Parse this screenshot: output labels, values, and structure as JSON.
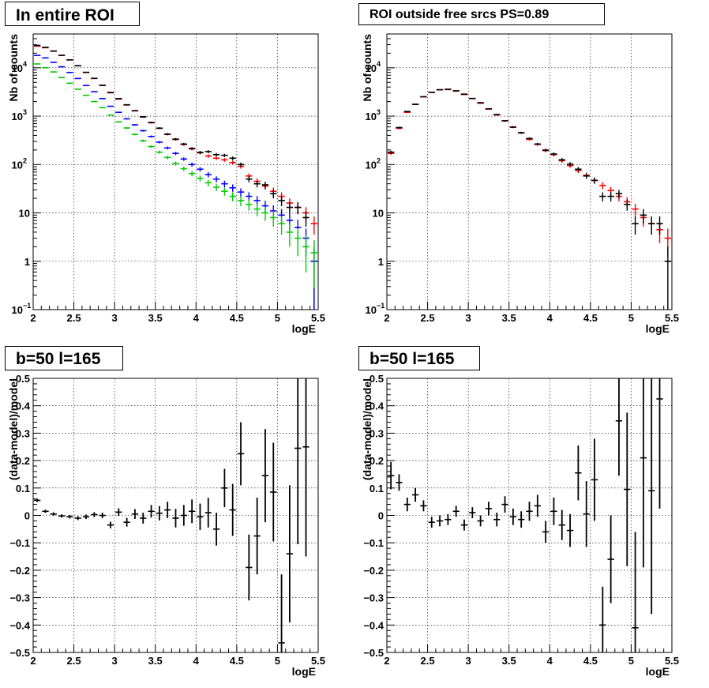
{
  "chart_data": [
    {
      "type": "scatter",
      "title": "In entire ROI",
      "xlabel": "logE",
      "ylabel": "Nb of counts",
      "xlim": [
        2,
        5.5
      ],
      "ylim": [
        0.1,
        50000
      ],
      "yscale": "log",
      "grid": true,
      "x_tick_labels": [
        "2",
        "2.5",
        "3",
        "3.5",
        "4",
        "4.5",
        "5",
        "5.5"
      ],
      "y_tick_labels": [
        {
          "mant": "10",
          "exp": "−1"
        },
        {
          "mant": "1",
          "exp": ""
        },
        {
          "mant": "10",
          "exp": ""
        },
        {
          "mant": "10",
          "exp": "2"
        },
        {
          "mant": "10",
          "exp": "3"
        },
        {
          "mant": "10",
          "exp": "4"
        }
      ],
      "x": [
        2.05,
        2.15,
        2.25,
        2.35,
        2.45,
        2.55,
        2.65,
        2.75,
        2.85,
        2.95,
        3.05,
        3.15,
        3.25,
        3.35,
        3.45,
        3.55,
        3.65,
        3.75,
        3.85,
        3.95,
        4.05,
        4.15,
        4.25,
        4.35,
        4.45,
        4.55,
        4.65,
        4.75,
        4.85,
        4.95,
        5.05,
        5.15,
        5.25,
        5.35,
        5.45
      ],
      "series": [
        {
          "color": "#ff0000",
          "values": [
            28000,
            26000,
            22000,
            18000,
            14500,
            11000,
            8000,
            6000,
            4300,
            3100,
            2250,
            1700,
            1300,
            960,
            730,
            560,
            420,
            330,
            260,
            210,
            175,
            150,
            135,
            125,
            110,
            92,
            58,
            45,
            36,
            28,
            22,
            16,
            13,
            10,
            6
          ]
        },
        {
          "color": "#000000",
          "values": [
            29000,
            26500,
            22200,
            18100,
            14600,
            11050,
            8050,
            6050,
            4350,
            3050,
            2300,
            1720,
            1290,
            970,
            740,
            565,
            425,
            335,
            265,
            215,
            178,
            185,
            160,
            155,
            135,
            100,
            50,
            40,
            38,
            25,
            18,
            13,
            13,
            8,
            1
          ]
        },
        {
          "color": "#0000ff",
          "values": [
            18000,
            16000,
            13000,
            10500,
            8000,
            6000,
            4300,
            3200,
            2300,
            1600,
            1200,
            880,
            660,
            500,
            380,
            290,
            220,
            170,
            130,
            100,
            80,
            62,
            50,
            40,
            33,
            27,
            22,
            18,
            14,
            11,
            9,
            7,
            5,
            3,
            1
          ]
        },
        {
          "color": "#00cc00",
          "values": [
            12000,
            10000,
            8200,
            6300,
            4800,
            3600,
            2700,
            2000,
            1500,
            1050,
            760,
            570,
            420,
            310,
            235,
            180,
            140,
            105,
            82,
            65,
            52,
            42,
            34,
            28,
            22,
            18,
            15,
            12,
            10,
            8,
            6,
            4,
            3,
            2,
            1.5
          ]
        }
      ]
    },
    {
      "type": "scatter",
      "title": "ROI outside free srcs PS=0.89",
      "xlabel": "logE",
      "ylabel": "Nb of counts",
      "xlim": [
        2,
        5.5
      ],
      "ylim": [
        0.1,
        50000
      ],
      "yscale": "log",
      "grid": true,
      "x_tick_labels": [
        "2",
        "2.5",
        "3",
        "3.5",
        "4",
        "4.5",
        "5",
        "5.5"
      ],
      "y_tick_labels": [
        {
          "mant": "10",
          "exp": "−1"
        },
        {
          "mant": "1",
          "exp": ""
        },
        {
          "mant": "10",
          "exp": ""
        },
        {
          "mant": "10",
          "exp": "2"
        },
        {
          "mant": "10",
          "exp": "3"
        },
        {
          "mant": "10",
          "exp": "4"
        }
      ],
      "x": [
        2.05,
        2.15,
        2.25,
        2.35,
        2.45,
        2.55,
        2.65,
        2.75,
        2.85,
        2.95,
        3.05,
        3.15,
        3.25,
        3.35,
        3.45,
        3.55,
        3.65,
        3.75,
        3.85,
        3.95,
        4.05,
        4.15,
        4.25,
        4.35,
        4.45,
        4.55,
        4.65,
        4.75,
        4.85,
        4.95,
        5.05,
        5.15,
        5.25,
        5.35,
        5.45
      ],
      "series": [
        {
          "color": "#ff0000",
          "values": [
            170,
            560,
            1200,
            1750,
            2500,
            3100,
            3500,
            3550,
            3300,
            2800,
            2300,
            1850,
            1400,
            1060,
            800,
            600,
            450,
            330,
            260,
            200,
            160,
            120,
            95,
            75,
            60,
            47,
            37,
            29,
            22,
            17,
            12,
            8,
            6,
            4.5,
            3
          ]
        },
        {
          "color": "#000000",
          "values": [
            180,
            580,
            1250,
            1760,
            2520,
            3120,
            3520,
            3600,
            3350,
            2850,
            2320,
            1900,
            1420,
            1080,
            800,
            590,
            455,
            345,
            265,
            195,
            165,
            125,
            102,
            80,
            58,
            47,
            22,
            22,
            25,
            15,
            6,
            9,
            6,
            6,
            1
          ]
        }
      ]
    },
    {
      "type": "scatter",
      "title": "b=50 l=165",
      "xlabel": "logE",
      "ylabel": "(data-model)/model",
      "xlim": [
        2,
        5.5
      ],
      "ylim": [
        -0.5,
        0.5
      ],
      "grid": true,
      "x_tick_labels": [
        "2",
        "2.5",
        "3",
        "3.5",
        "4",
        "4.5",
        "5",
        "5.5"
      ],
      "y_tick_labels": [
        "−0.5",
        "−0.4",
        "−0.3",
        "−0.2",
        "−0.1",
        "0",
        "0.1",
        "0.2",
        "0.3",
        "0.4",
        "0.5"
      ],
      "x": [
        2.05,
        2.15,
        2.25,
        2.35,
        2.45,
        2.55,
        2.65,
        2.75,
        2.85,
        2.95,
        3.05,
        3.15,
        3.25,
        3.35,
        3.45,
        3.55,
        3.65,
        3.75,
        3.85,
        3.95,
        4.05,
        4.15,
        4.25,
        4.35,
        4.45,
        4.55,
        4.65,
        4.75,
        4.85,
        4.95,
        5.05,
        5.15,
        5.25,
        5.35
      ],
      "values": [
        0.055,
        0.015,
        0.005,
        -0.002,
        -0.005,
        -0.01,
        -0.005,
        0.003,
        0.0,
        -0.035,
        0.012,
        -0.025,
        0.005,
        -0.01,
        0.015,
        0.008,
        0.02,
        -0.01,
        0.0,
        0.015,
        -0.005,
        0.01,
        -0.05,
        0.1,
        0.02,
        0.225,
        -0.19,
        -0.075,
        0.145,
        0.085,
        -0.465,
        -0.14,
        0.245,
        0.25
      ],
      "errors": [
        0.006,
        0.006,
        0.006,
        0.006,
        0.006,
        0.007,
        0.008,
        0.009,
        0.01,
        0.012,
        0.014,
        0.016,
        0.018,
        0.02,
        0.023,
        0.026,
        0.03,
        0.034,
        0.038,
        0.043,
        0.048,
        0.054,
        0.06,
        0.07,
        0.095,
        0.115,
        0.12,
        0.14,
        0.17,
        0.18,
        0.25,
        0.25,
        0.35,
        0.4
      ],
      "color": "#000000"
    },
    {
      "type": "scatter",
      "title": "b=50 l=165",
      "xlabel": "logE",
      "ylabel": "(data-model)/model",
      "xlim": [
        2,
        5.5
      ],
      "ylim": [
        -0.5,
        0.5
      ],
      "grid": true,
      "x_tick_labels": [
        "2",
        "2.5",
        "3",
        "3.5",
        "4",
        "4.5",
        "5",
        "5.5"
      ],
      "y_tick_labels": [
        "−0.5",
        "−0.4",
        "−0.3",
        "−0.2",
        "−0.1",
        "0",
        "0.1",
        "0.2",
        "0.3",
        "0.4",
        "0.5"
      ],
      "x": [
        2.05,
        2.15,
        2.25,
        2.35,
        2.45,
        2.55,
        2.65,
        2.75,
        2.85,
        2.95,
        3.05,
        3.15,
        3.25,
        3.35,
        3.45,
        3.55,
        3.65,
        3.75,
        3.85,
        3.95,
        4.05,
        4.15,
        4.25,
        4.35,
        4.45,
        4.55,
        4.65,
        4.75,
        4.85,
        4.95,
        5.05,
        5.15,
        5.25,
        5.35
      ],
      "values": [
        0.145,
        0.12,
        0.04,
        0.075,
        0.035,
        -0.025,
        -0.02,
        -0.015,
        0.015,
        -0.035,
        0.01,
        -0.02,
        0.025,
        -0.015,
        0.04,
        -0.005,
        -0.015,
        0.015,
        0.035,
        -0.06,
        0.015,
        -0.035,
        -0.055,
        0.155,
        0.005,
        0.13,
        -0.4,
        -0.16,
        0.345,
        0.095,
        -0.41,
        0.21,
        0.09,
        0.425
      ],
      "errors": [
        0.05,
        0.03,
        0.025,
        0.025,
        0.02,
        0.02,
        0.02,
        0.02,
        0.02,
        0.02,
        0.02,
        0.02,
        0.025,
        0.025,
        0.03,
        0.03,
        0.03,
        0.035,
        0.04,
        0.04,
        0.05,
        0.055,
        0.06,
        0.1,
        0.12,
        0.15,
        0.14,
        0.16,
        0.2,
        0.28,
        0.35,
        0.4,
        0.45,
        0.4
      ],
      "color": "#000000"
    }
  ]
}
